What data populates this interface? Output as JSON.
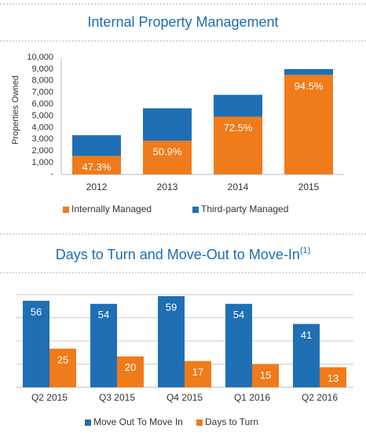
{
  "chart_data": [
    {
      "type": "bar",
      "stacked": true,
      "title": "Internal Property Management",
      "y_label": "Properties Owned",
      "categories": [
        "2012",
        "2013",
        "2014",
        "2015"
      ],
      "series": [
        {
          "name": "Internally Managed",
          "color": "#f07b1a",
          "values": [
            1580,
            2880,
            4930,
            8500
          ],
          "share_labels": [
            "47.3%",
            "50.9%",
            "72.5%",
            "94.5%"
          ]
        },
        {
          "name": "Third-party Managed",
          "color": "#1f6fb5",
          "values": [
            1770,
            2770,
            1870,
            500
          ]
        }
      ],
      "ylim": [
        0,
        10000
      ],
      "yticks": [
        {
          "value": 0,
          "label": "-"
        },
        {
          "value": 1000,
          "label": "1,000"
        },
        {
          "value": 2000,
          "label": "2,000"
        },
        {
          "value": 3000,
          "label": "3,000"
        },
        {
          "value": 4000,
          "label": "4,000"
        },
        {
          "value": 5000,
          "label": "5,000"
        },
        {
          "value": 6000,
          "label": "6,000"
        },
        {
          "value": 7000,
          "label": "7,000"
        },
        {
          "value": 8000,
          "label": "8,000"
        },
        {
          "value": 9000,
          "label": "9,000"
        },
        {
          "value": 10000,
          "label": "10,000"
        }
      ],
      "grid": false
    },
    {
      "type": "bar",
      "stacked": false,
      "title": "Days to Turn and Move-Out to Move-In",
      "title_note": "(1)",
      "categories": [
        "Q2 2015",
        "Q3 2015",
        "Q4 2015",
        "Q1 2016",
        "Q2 2016"
      ],
      "series": [
        {
          "name": "Move Out To Move In",
          "color": "#1f6fb5",
          "values": [
            56,
            54,
            59,
            54,
            41
          ]
        },
        {
          "name": "Days to Turn",
          "color": "#f07b1a",
          "values": [
            25,
            20,
            17,
            15,
            13
          ]
        }
      ],
      "ylim": [
        0,
        60
      ],
      "yticks": [
        0,
        15,
        30,
        45,
        60
      ],
      "grid": true
    }
  ]
}
